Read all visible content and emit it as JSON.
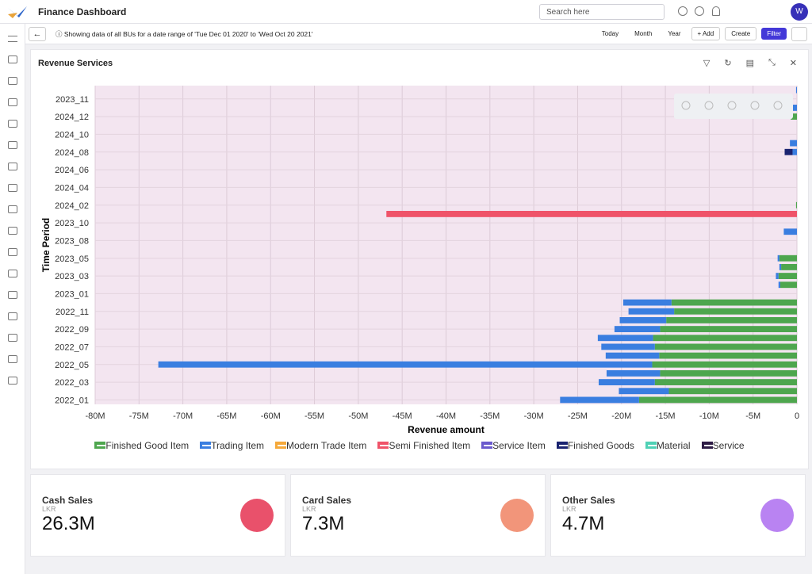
{
  "header": {
    "title": "Finance Dashboard",
    "search_placeholder": "Search here",
    "avatar": "W"
  },
  "toolbar": {
    "info": "Showing data of all BUs for a date range of 'Tue Dec 01 2020' to 'Wed Oct 20 2021'",
    "buttons": [
      "Today",
      "Month",
      "Year",
      "+ Add",
      "Create",
      "Filter"
    ]
  },
  "panel": {
    "title": "Revenue Services"
  },
  "chart_data": {
    "type": "stacked-horizontal-bar",
    "y_label": "Time Period",
    "x_label": "Revenue amount",
    "categories": [
      "2022_01",
      null,
      "2022_03",
      null,
      "2022_05",
      null,
      "2022_07",
      null,
      "2022_09",
      null,
      "2022_11",
      null,
      "2023_01",
      null,
      "2023_03",
      null,
      "2023_05",
      null,
      "2023_08",
      null,
      "2023_10",
      null,
      "2024_02",
      null,
      "2024_04",
      null,
      "2024_06",
      null,
      "2024_08",
      null,
      "2024_10",
      null,
      "2024_12",
      null,
      "2023_11",
      null
    ],
    "xlim": [
      -80000000,
      0
    ],
    "xticks": [
      {
        "value": -80000000,
        "label": "-80M"
      },
      {
        "value": -75000000,
        "label": "-75M"
      },
      {
        "value": -70000000,
        "label": "-70M"
      },
      {
        "value": -65000000,
        "label": "-65M"
      },
      {
        "value": -60000000,
        "label": "-60M"
      },
      {
        "value": -55000000,
        "label": "-55M"
      },
      {
        "value": -50000000,
        "label": "-50M"
      },
      {
        "value": -45000000,
        "label": "-45M"
      },
      {
        "value": -40000000,
        "label": "-40M"
      },
      {
        "value": -35000000,
        "label": "-35M"
      },
      {
        "value": -30000000,
        "label": "-30M"
      },
      {
        "value": -25000000,
        "label": "-25M"
      },
      {
        "value": -20000000,
        "label": "-20M"
      },
      {
        "value": -15000000,
        "label": "-15M"
      },
      {
        "value": -10000000,
        "label": "-10M"
      },
      {
        "value": -5000000,
        "label": "-5M"
      },
      0
    ],
    "grid": true,
    "series": [
      {
        "name": "Finished Good Item",
        "color": "#4ea64e",
        "values": [
          -18000000,
          -14600000,
          -16200000,
          -15600000,
          -16500000,
          -15700000,
          -16200000,
          -16400000,
          -15600000,
          -14900000,
          -14000000,
          -14300000,
          0,
          -1900000,
          -2100000,
          -1800000,
          -2000000,
          0,
          0,
          0,
          0,
          0,
          -100000,
          0,
          0,
          0,
          0,
          0,
          0,
          0,
          0,
          0,
          -700000,
          0,
          0,
          0
        ]
      },
      {
        "name": "Trading Item",
        "color": "#3a7ee0",
        "values": [
          -9000000,
          -5700000,
          -6400000,
          -6100000,
          -56300000,
          -6100000,
          -6100000,
          -6300000,
          -5200000,
          -5300000,
          -5200000,
          -5500000,
          0,
          -200000,
          -300000,
          -200000,
          -200000,
          0,
          0,
          -1500000,
          0,
          0,
          0,
          0,
          0,
          0,
          0,
          0,
          -500000,
          -800000,
          0,
          0,
          0,
          -700000,
          0,
          -100000
        ]
      },
      {
        "name": "Modern Trade Item",
        "color": "#f5a93a",
        "values": [
          0,
          0,
          0,
          0,
          0,
          0,
          0,
          0,
          0,
          0,
          0,
          0,
          0,
          0,
          0,
          0,
          0,
          0,
          0,
          0,
          0,
          0,
          0,
          0,
          0,
          0,
          0,
          0,
          0,
          0,
          0,
          0,
          0,
          0,
          0,
          0
        ]
      },
      {
        "name": "Semi Finished Item",
        "color": "#ef5369",
        "values": [
          0,
          0,
          0,
          0,
          0,
          0,
          0,
          0,
          0,
          0,
          0,
          0,
          0,
          0,
          0,
          0,
          0,
          0,
          0,
          0,
          0,
          -46800000,
          0,
          0,
          0,
          0,
          0,
          0,
          0,
          0,
          0,
          0,
          0,
          0,
          0,
          0
        ]
      },
      {
        "name": "Service Item",
        "color": "#6a5acd",
        "values": [
          0,
          0,
          0,
          0,
          0,
          0,
          0,
          0,
          0,
          0,
          0,
          0,
          0,
          0,
          0,
          0,
          0,
          0,
          0,
          0,
          0,
          0,
          0,
          0,
          0,
          0,
          0,
          0,
          0,
          0,
          0,
          0,
          0,
          0,
          0,
          0
        ]
      },
      {
        "name": "Finished Goods",
        "color": "#1a2370",
        "values": [
          0,
          0,
          0,
          0,
          0,
          0,
          0,
          0,
          0,
          0,
          0,
          0,
          0,
          0,
          0,
          0,
          0,
          0,
          0,
          0,
          0,
          0,
          0,
          0,
          0,
          0,
          0,
          0,
          -900000,
          0,
          0,
          0,
          0,
          0,
          0,
          0
        ]
      },
      {
        "name": "Material",
        "color": "#4fd1b5",
        "values": [
          0,
          0,
          0,
          0,
          0,
          0,
          0,
          0,
          0,
          0,
          0,
          0,
          0,
          0,
          0,
          0,
          0,
          0,
          0,
          0,
          0,
          0,
          0,
          0,
          0,
          0,
          0,
          0,
          0,
          0,
          0,
          0,
          0,
          0,
          0,
          0
        ]
      },
      {
        "name": "Service",
        "color": "#2d1b45",
        "values": [
          0,
          0,
          0,
          0,
          0,
          0,
          0,
          0,
          0,
          0,
          0,
          0,
          0,
          0,
          0,
          0,
          0,
          0,
          0,
          0,
          0,
          0,
          0,
          0,
          0,
          0,
          0,
          0,
          0,
          0,
          0,
          0,
          0,
          0,
          0,
          0
        ]
      }
    ]
  },
  "cards": [
    {
      "title": "Cash Sales",
      "currency": "LKR",
      "value": "26.3M",
      "color": "#e9516b"
    },
    {
      "title": "Card Sales",
      "currency": "LKR",
      "value": "7.3M",
      "color": "#f2957a"
    },
    {
      "title": "Other Sales",
      "currency": "LKR",
      "value": "4.7M",
      "color": "#b983f2"
    }
  ]
}
